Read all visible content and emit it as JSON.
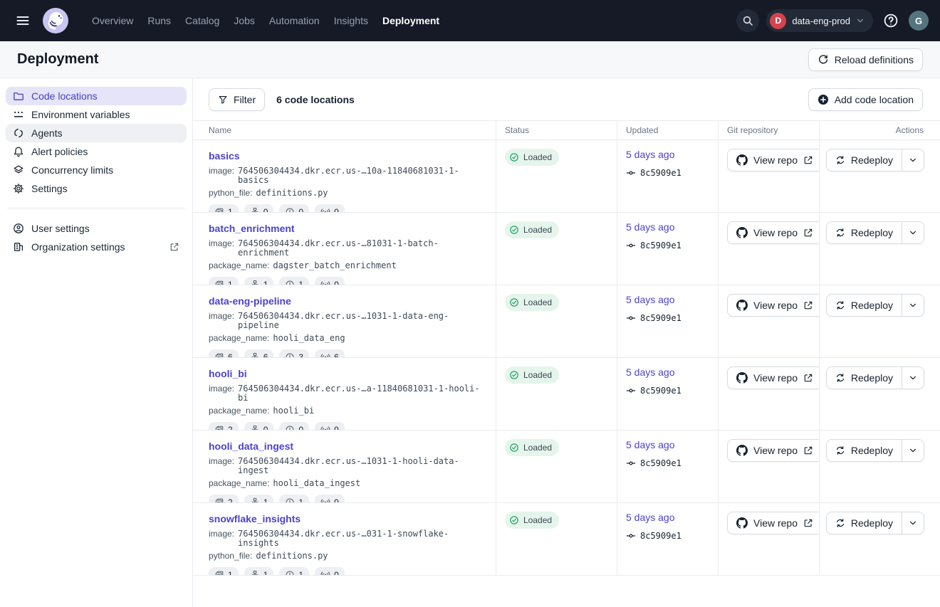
{
  "colors": {
    "nav_bg": "#151A26",
    "accent_blurple": "#4B43CE",
    "active_item_bg": "#E5E4F8",
    "status_green": "#1FA566",
    "status_pill_bg": "#E6F5EC",
    "deployment_red": "#D2434E",
    "avatar_teal": "#54757D"
  },
  "navbar": {
    "menu_icon": "hamburger-icon",
    "logo_icon": "dagster-logo",
    "items": [
      {
        "label": "Overview",
        "active": false
      },
      {
        "label": "Runs",
        "active": false
      },
      {
        "label": "Catalog",
        "active": false
      },
      {
        "label": "Jobs",
        "active": false
      },
      {
        "label": "Automation",
        "active": false
      },
      {
        "label": "Insights",
        "active": false
      },
      {
        "label": "Deployment",
        "active": true
      }
    ],
    "search_icon": "search-icon",
    "deployment_selector": {
      "initial": "D",
      "name": "data-eng-prod"
    },
    "help_icon": "help-icon",
    "avatar_initial": "G"
  },
  "header": {
    "title": "Deployment",
    "reload_button": {
      "label": "Reload definitions",
      "icon": "reload-icon"
    }
  },
  "sidebar": {
    "items": [
      {
        "label": "Code locations",
        "icon": "folder-icon",
        "state": "active"
      },
      {
        "label": "Environment variables",
        "icon": "env-vars-icon",
        "state": "normal"
      },
      {
        "label": "Agents",
        "icon": "agents-icon",
        "state": "hover"
      },
      {
        "label": "Alert policies",
        "icon": "bell-icon",
        "state": "normal"
      },
      {
        "label": "Concurrency limits",
        "icon": "layers-icon",
        "state": "normal"
      },
      {
        "label": "Settings",
        "icon": "gear-icon",
        "state": "normal"
      }
    ],
    "footer_items": [
      {
        "label": "User settings",
        "icon": "user-icon",
        "external": false
      },
      {
        "label": "Organization settings",
        "icon": "building-icon",
        "external": true
      }
    ]
  },
  "toolbar": {
    "filter_label": "Filter",
    "count_text": "6 code locations",
    "add_label": "Add code location"
  },
  "table": {
    "columns": [
      "Name",
      "Status",
      "Updated",
      "Git repository",
      "Actions"
    ],
    "badge_icons": [
      "stack-icon",
      "graph-icon",
      "clock-icon",
      "sensor-icon"
    ],
    "view_repo_label": "View repo",
    "redeploy_label": "Redeploy",
    "rows": [
      {
        "name": "basics",
        "meta": [
          {
            "key": "image:",
            "value": "764506304434.dkr.ecr.us-…10a-11840681031-1-basics"
          },
          {
            "key": "python_file:",
            "value": "definitions.py"
          }
        ],
        "counts": [
          1,
          0,
          0,
          0
        ],
        "status": "Loaded",
        "updated": "5 days ago",
        "commit": "8c5909e1"
      },
      {
        "name": "batch_enrichment",
        "meta": [
          {
            "key": "image:",
            "value": "764506304434.dkr.ecr.us-…81031-1-batch-enrichment"
          },
          {
            "key": "package_name:",
            "value": "dagster_batch_enrichment"
          }
        ],
        "counts": [
          1,
          1,
          1,
          0
        ],
        "status": "Loaded",
        "updated": "5 days ago",
        "commit": "8c5909e1"
      },
      {
        "name": "data-eng-pipeline",
        "meta": [
          {
            "key": "image:",
            "value": "764506304434.dkr.ecr.us-…1031-1-data-eng-pipeline"
          },
          {
            "key": "package_name:",
            "value": "hooli_data_eng"
          }
        ],
        "counts": [
          6,
          6,
          3,
          6
        ],
        "status": "Loaded",
        "updated": "5 days ago",
        "commit": "8c5909e1"
      },
      {
        "name": "hooli_bi",
        "meta": [
          {
            "key": "image:",
            "value": "764506304434.dkr.ecr.us-…a-11840681031-1-hooli-bi"
          },
          {
            "key": "package_name:",
            "value": "hooli_bi"
          }
        ],
        "counts": [
          2,
          0,
          0,
          0
        ],
        "status": "Loaded",
        "updated": "5 days ago",
        "commit": "8c5909e1"
      },
      {
        "name": "hooli_data_ingest",
        "meta": [
          {
            "key": "image:",
            "value": "764506304434.dkr.ecr.us-…1031-1-hooli-data-ingest"
          },
          {
            "key": "package_name:",
            "value": "hooli_data_ingest"
          }
        ],
        "counts": [
          2,
          1,
          1,
          0
        ],
        "status": "Loaded",
        "updated": "5 days ago",
        "commit": "8c5909e1"
      },
      {
        "name": "snowflake_insights",
        "meta": [
          {
            "key": "image:",
            "value": "764506304434.dkr.ecr.us-…031-1-snowflake-insights"
          },
          {
            "key": "python_file:",
            "value": "definitions.py"
          }
        ],
        "counts": [
          1,
          1,
          1,
          0
        ],
        "status": "Loaded",
        "updated": "5 days ago",
        "commit": "8c5909e1"
      }
    ]
  }
}
